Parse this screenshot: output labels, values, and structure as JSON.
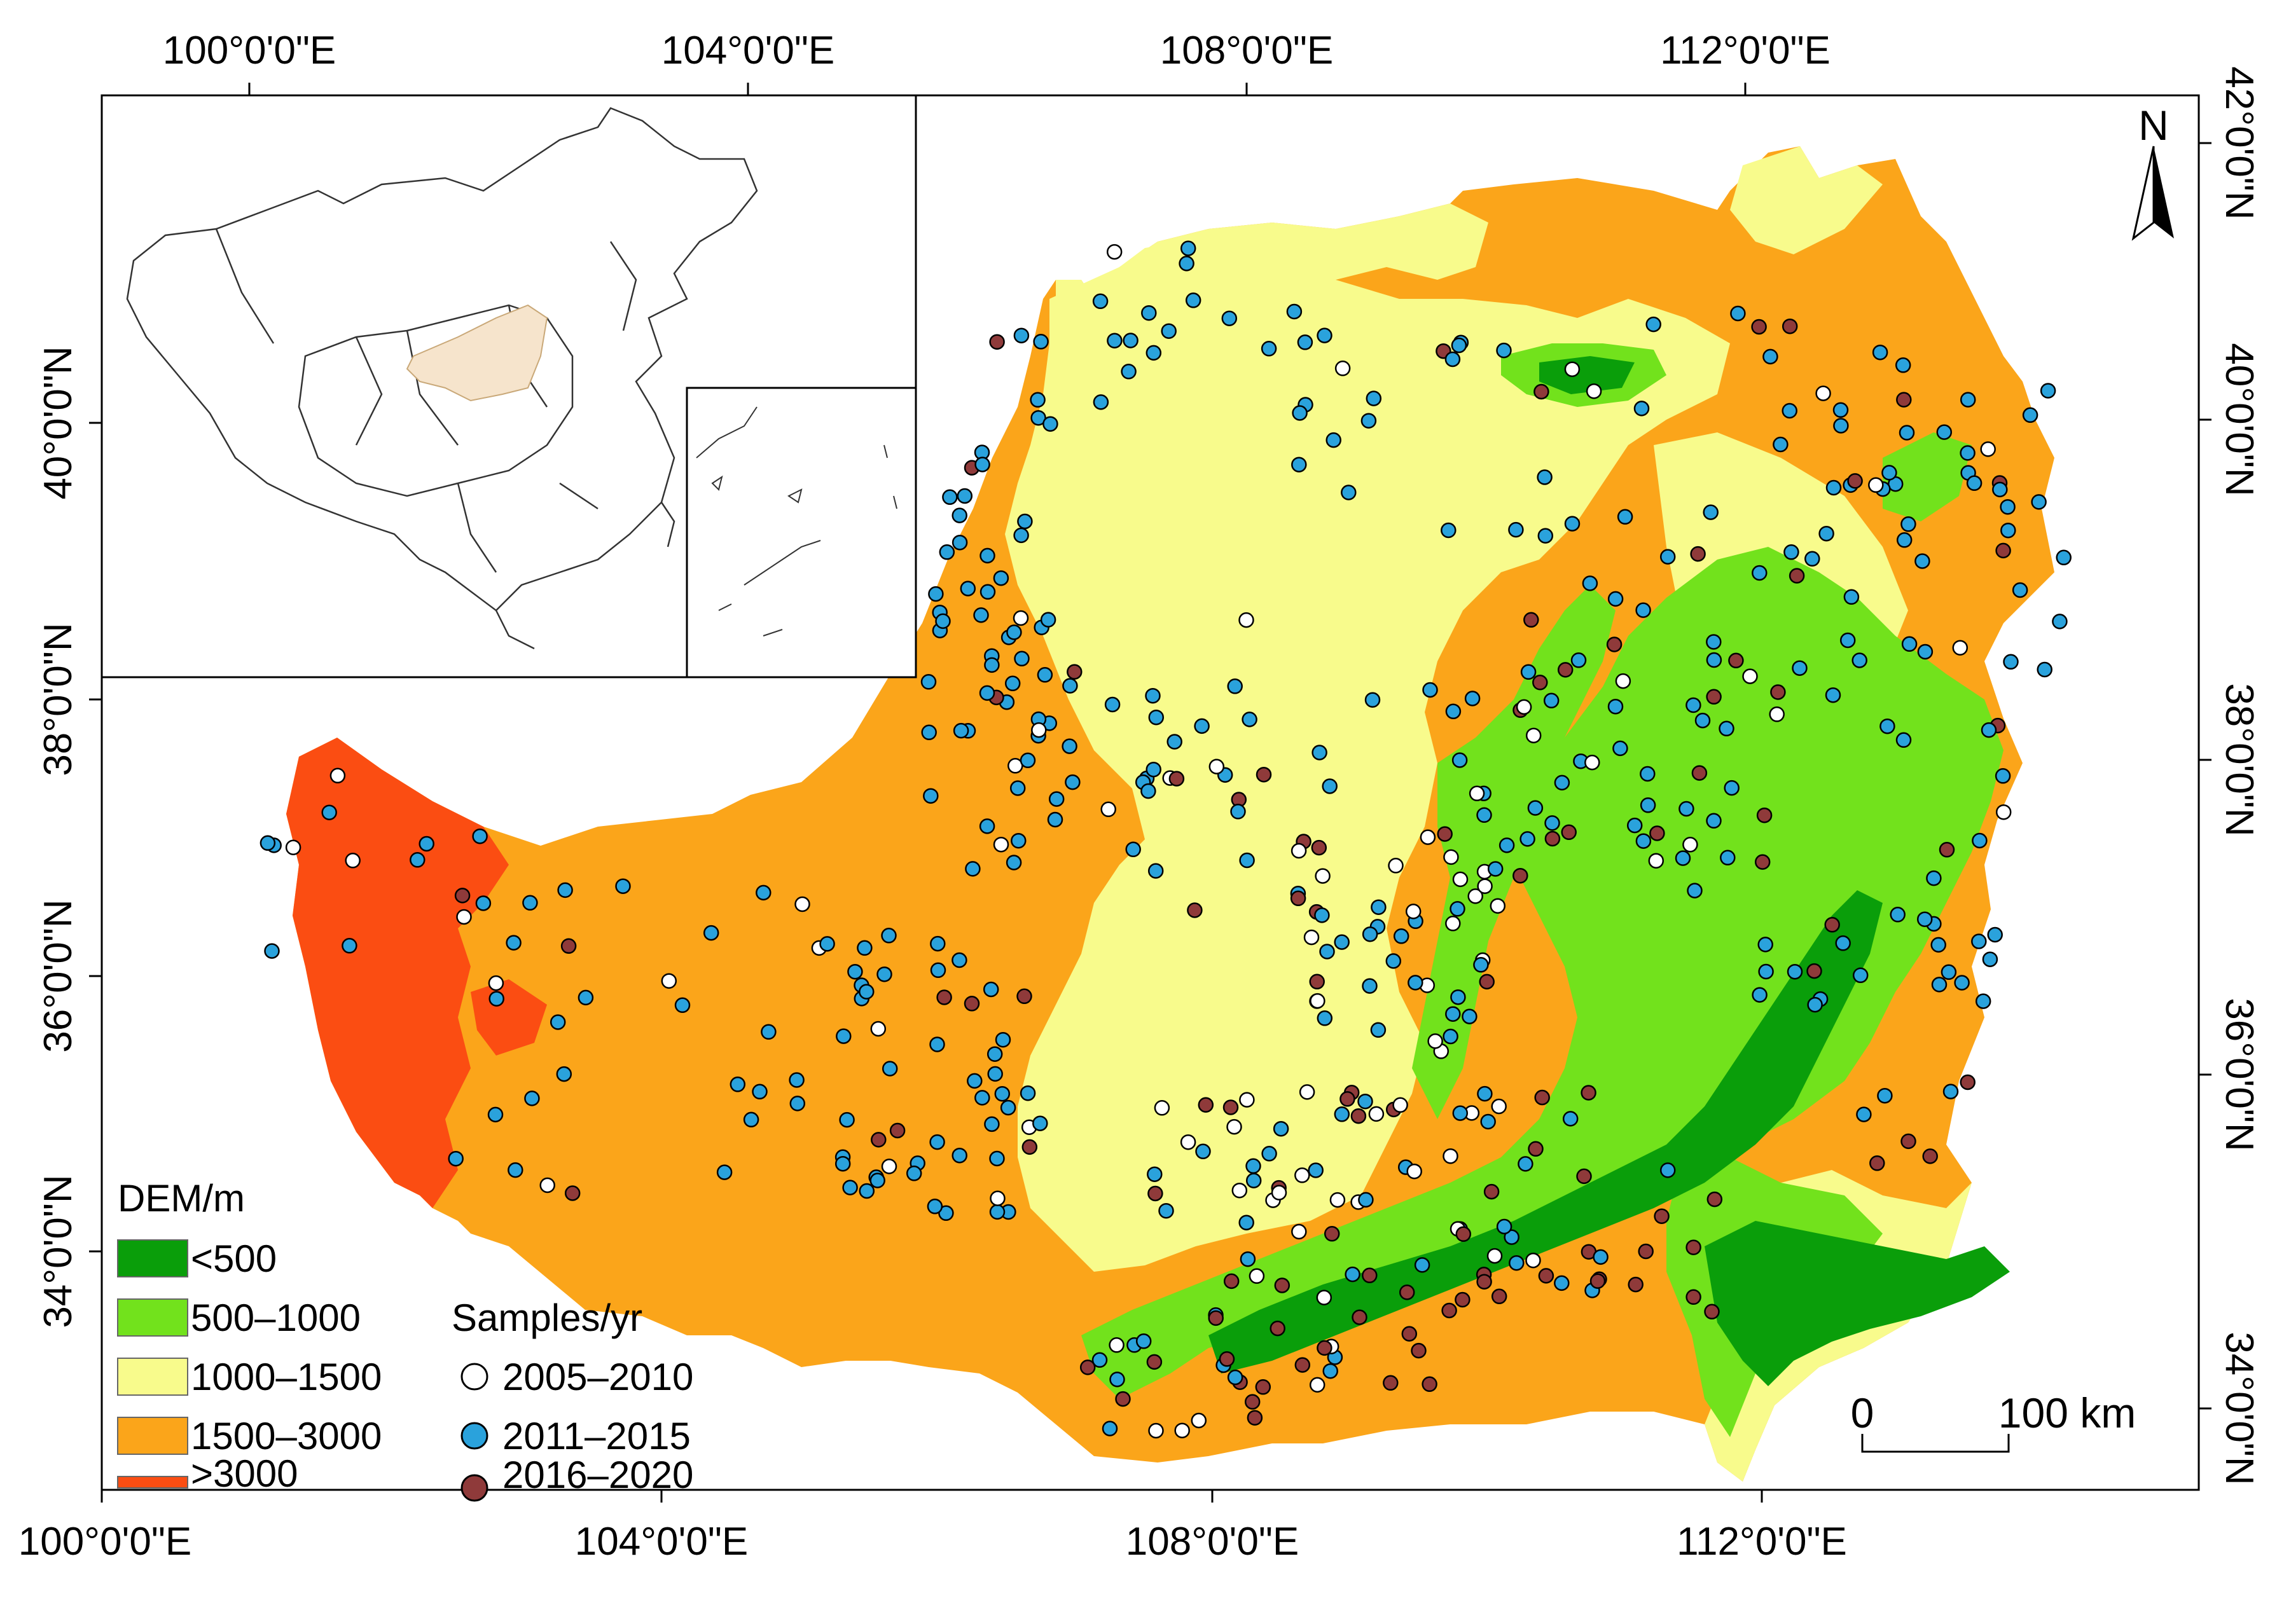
{
  "colors": {
    "dem_lt500": "#0a9e0a",
    "dem_500_1000": "#72e21c",
    "dem_1000_1500": "#f8fb8c",
    "dem_1500_3000": "#fba51a",
    "dem_gt3000": "#fb4d12",
    "sample_2005_2010": "#ffffff",
    "sample_2011_2015": "#2aa2dc",
    "sample_2016_2020": "#8f3a3a",
    "inset_highlight": "#f6e4cc"
  },
  "axes": {
    "top_labels": [
      "100°0'0\"E",
      "104°0'0\"E",
      "108°0'0\"E",
      "112°0'0\"E"
    ],
    "bottom_labels": [
      "100°0'0\"E",
      "104°0'0\"E",
      "108°0'0\"E",
      "112°0'0\"E"
    ],
    "left_labels": [
      "40°0'0\"N",
      "38°0'0\"N",
      "36°0'0\"N",
      "34°0'0\"N"
    ],
    "right_labels": [
      "42°0'0\"N",
      "40°0'0\"N",
      "38°0'0\"N",
      "36°0'0\"N",
      "34°0'0\"N"
    ]
  },
  "north_arrow": {
    "label": "N",
    "icon": "north-arrow-icon"
  },
  "legend": {
    "dem_title": "DEM/m",
    "dem_classes": [
      "<500",
      "500–1000",
      "1000–1500",
      "1500–3000",
      ">3000"
    ],
    "samples_title": "Samples/yr",
    "sample_classes": [
      "2005–2010",
      "2011–2015",
      "2016–2020"
    ]
  },
  "scale_bar": {
    "zero_label": "0",
    "length_label": "100 km"
  },
  "inset": {
    "content": "China locator map with Loess Plateau highlighted",
    "icon": "china-outline-icon"
  }
}
